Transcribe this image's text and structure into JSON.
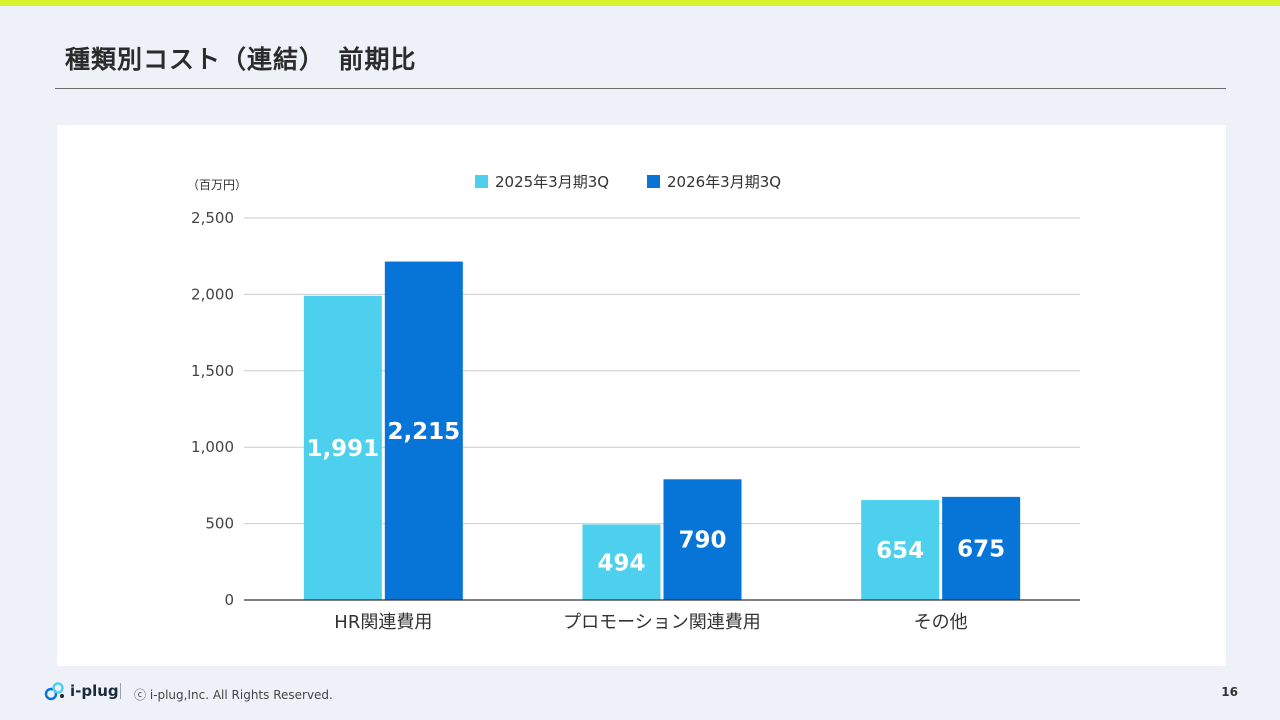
{
  "page": {
    "title": "種類別コスト（連結）　前期比",
    "logo_text": "i-plug",
    "copyright": "ⓒ i-plug,Inc. All Rights Reserved.",
    "page_number": "16"
  },
  "colors": {
    "accent_bar": "#d6f22c",
    "series_2025": "#4dd0ee",
    "series_2026": "#0775d8"
  },
  "chart_data": {
    "type": "bar",
    "unit_label": "（百万円）",
    "categories": [
      "HR関連費用",
      "プロモーション関連費用",
      "その他"
    ],
    "series": [
      {
        "name": "2025年3月期3Q",
        "values": [
          1991,
          494,
          654
        ],
        "labels": [
          "1,991",
          "494",
          "654"
        ],
        "color": "#4dd0ee"
      },
      {
        "name": "2026年3月期3Q",
        "values": [
          2215,
          790,
          675
        ],
        "labels": [
          "2,215",
          "790",
          "675"
        ],
        "color": "#0775d8"
      }
    ],
    "ylim": [
      0,
      2500
    ],
    "yticks": [
      0,
      500,
      1000,
      1500,
      2000,
      2500
    ],
    "ytick_labels": [
      "0",
      "500",
      "1,000",
      "1,500",
      "2,000",
      "2,500"
    ],
    "grid": true,
    "legend_position": "top-center"
  }
}
